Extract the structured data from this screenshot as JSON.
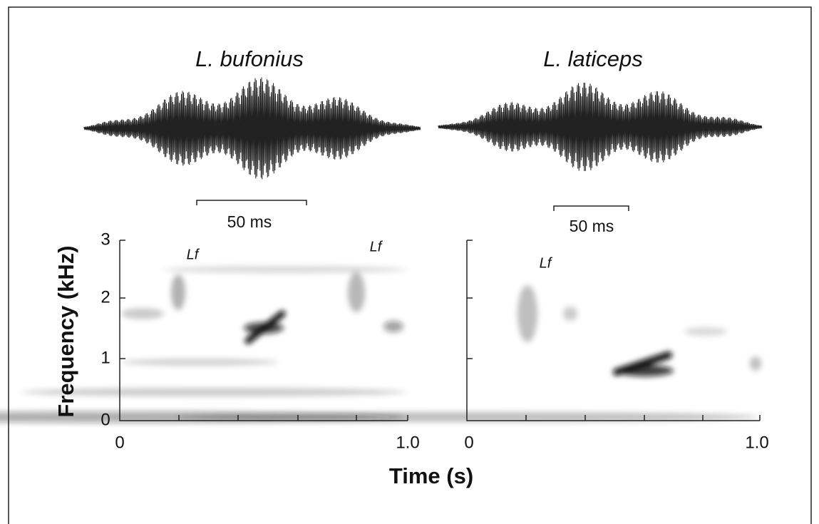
{
  "panels": [
    {
      "title": "L. bufonius",
      "scale_bar": "50 ms",
      "annotations": [
        "Lf",
        "Lf"
      ],
      "x_ticks": [
        "0",
        "1.0"
      ]
    },
    {
      "title": "L. laticeps",
      "scale_bar": "50 ms",
      "annotations": [
        "Lf"
      ],
      "x_ticks": [
        "0",
        "1.0"
      ]
    }
  ],
  "y_axis": {
    "label": "Frequency (kHz)",
    "ticks": [
      "0",
      "1",
      "2",
      "3"
    ]
  },
  "x_axis": {
    "label": "Time (s)"
  }
}
